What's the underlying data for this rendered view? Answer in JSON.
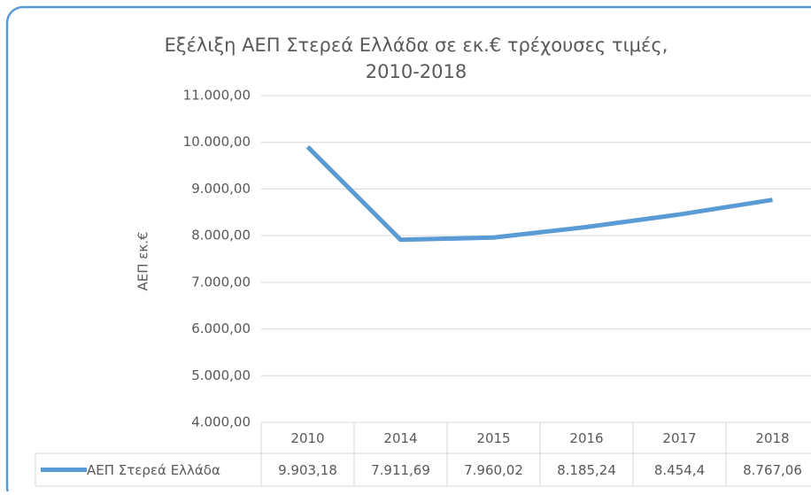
{
  "chart_data": {
    "type": "line",
    "title": [
      "Εξέλιξη ΑΕΠ Στερεά Ελλάδα σε εκ.€ τρέχουσες τιμές,",
      "2010-2018"
    ],
    "y_label": "ΑΕΠ εκ.€",
    "categories": [
      "2010",
      "2014",
      "2015",
      "2016",
      "2017",
      "2018"
    ],
    "series": [
      {
        "name": "ΑΕΠ Στερεά Ελλάδα",
        "color": "#5b9bd5",
        "values": [
          9903.18,
          7911.69,
          7960.02,
          8185.24,
          8454.4,
          8767.06
        ],
        "value_labels": [
          "9.903,18",
          "7.911,69",
          "7.960,02",
          "8.185,24",
          "8.454,4",
          "8.767,06"
        ]
      }
    ],
    "ylim": [
      4000,
      11000
    ],
    "yticks": [
      {
        "value": 4000,
        "label": "4.000,00"
      },
      {
        "value": 5000,
        "label": "5.000,00"
      },
      {
        "value": 6000,
        "label": "6.000,00"
      },
      {
        "value": 7000,
        "label": "7.000,00"
      },
      {
        "value": 8000,
        "label": "8.000,00"
      },
      {
        "value": 9000,
        "label": "9.000,00"
      },
      {
        "value": 10000,
        "label": "10.000,00"
      },
      {
        "value": 11000,
        "label": "11.000,00"
      }
    ],
    "grid": true,
    "legend": "table"
  }
}
